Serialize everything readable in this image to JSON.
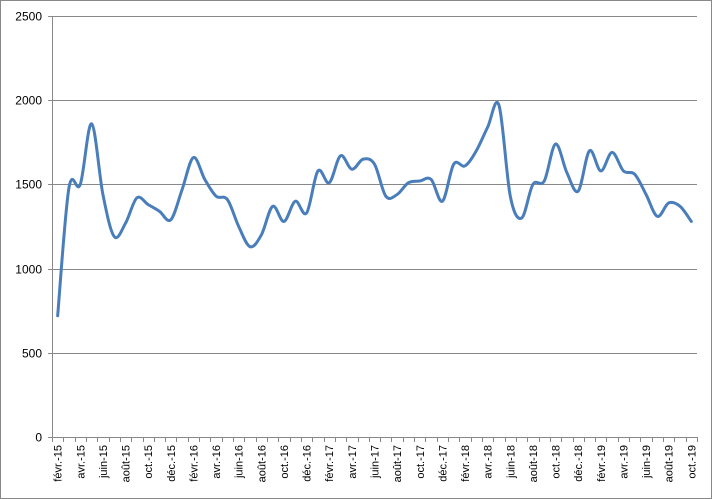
{
  "chart_data": {
    "type": "line",
    "title": "",
    "xlabel": "",
    "ylabel": "",
    "ylim": [
      0,
      2500
    ],
    "yticks": [
      0,
      500,
      1000,
      1500,
      2000,
      2500
    ],
    "grid": true,
    "legend": "none",
    "line_color": "#4A7EBB",
    "gridline_color": "#888888",
    "categories": [
      "févr.-15",
      "mars-15",
      "avr.-15",
      "mai-15",
      "juin-15",
      "juil.-15",
      "août-15",
      "sept.-15",
      "oct.-15",
      "nov.-15",
      "déc.-15",
      "janv.-16",
      "févr.-16",
      "mars-16",
      "avr.-16",
      "mai-16",
      "juin-16",
      "juil.-16",
      "août-16",
      "sept.-16",
      "oct.-16",
      "nov.-16",
      "déc.-16",
      "janv.-17",
      "févr.-17",
      "mars-17",
      "avr.-17",
      "mai-17",
      "juin-17",
      "juil.-17",
      "août-17",
      "sept.-17",
      "oct.-17",
      "nov.-17",
      "déc.-17",
      "janv.-18",
      "févr.-18",
      "mars-18",
      "avr.-18",
      "mai-18",
      "juin-18",
      "juil.-18",
      "août-18",
      "sept.-18",
      "oct.-18",
      "nov.-18",
      "déc.-18",
      "janv.-19",
      "févr.-19",
      "mars-19",
      "avr.-19",
      "mai-19",
      "juin-19",
      "juil.-19",
      "août-19",
      "sept.-19",
      "oct.-19"
    ],
    "tick_labels": [
      "févr.-15",
      "avr.-15",
      "juin-15",
      "août-15",
      "oct.-15",
      "déc.-15",
      "févr.-16",
      "avr.-16",
      "juin-16",
      "août-16",
      "oct.-16",
      "déc.-16",
      "févr.-17",
      "avr.-17",
      "juin-17",
      "août-17",
      "oct.-17",
      "déc.-17",
      "févr.-18",
      "avr.-18",
      "juin-18",
      "août-18",
      "oct.-18",
      "déc.-18",
      "févr.-19",
      "avr.-19",
      "juin-19",
      "août-19",
      "oct.-19"
    ],
    "values": [
      720,
      1480,
      1500,
      1860,
      1440,
      1190,
      1270,
      1420,
      1380,
      1340,
      1290,
      1470,
      1660,
      1530,
      1430,
      1410,
      1250,
      1130,
      1200,
      1370,
      1280,
      1400,
      1330,
      1580,
      1510,
      1670,
      1590,
      1650,
      1620,
      1430,
      1440,
      1510,
      1520,
      1530,
      1400,
      1620,
      1610,
      1700,
      1840,
      1970,
      1430,
      1300,
      1500,
      1520,
      1740,
      1570,
      1460,
      1700,
      1580,
      1690,
      1580,
      1560,
      1440,
      1310,
      1390,
      1370,
      1280
    ]
  }
}
